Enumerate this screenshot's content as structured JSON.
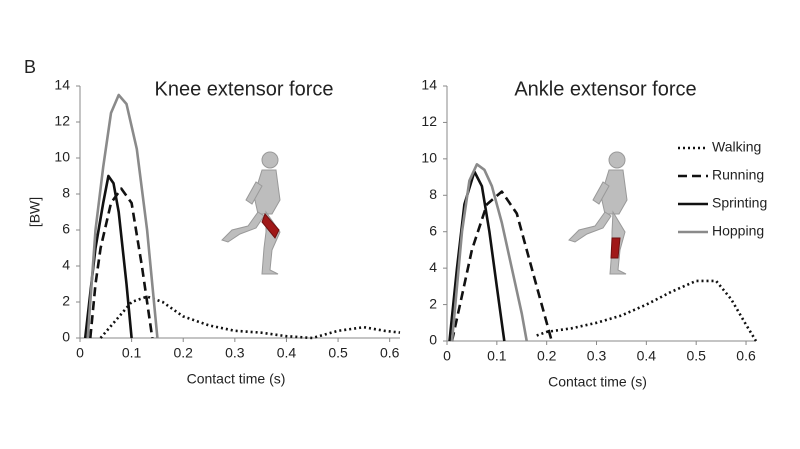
{
  "panel_label": "B",
  "chart_data": [
    {
      "type": "line",
      "title": "Knee extensor force",
      "xlabel": "Contact time (s)",
      "ylabel": "[BW]",
      "xlim": [
        0,
        0.62
      ],
      "xticks": [
        0,
        0.1,
        0.2,
        0.3,
        0.4,
        0.5,
        0.6
      ],
      "ylim": [
        0,
        14
      ],
      "yticks": [
        0,
        2,
        4,
        6,
        8,
        10,
        12,
        14
      ],
      "grid": false,
      "series": [
        {
          "name": "Walking",
          "color": "#111111",
          "dash": "dotted",
          "x": [
            0.04,
            0.07,
            0.1,
            0.13,
            0.16,
            0.2,
            0.25,
            0.3,
            0.35,
            0.4,
            0.45,
            0.5,
            0.55,
            0.59,
            0.62
          ],
          "values": [
            0,
            1.0,
            2.0,
            2.3,
            2.0,
            1.2,
            0.7,
            0.4,
            0.3,
            0.1,
            0,
            0.4,
            0.6,
            0.4,
            0.3
          ]
        },
        {
          "name": "Running",
          "color": "#111111",
          "dash": "dashed",
          "x": [
            0.02,
            0.03,
            0.04,
            0.06,
            0.08,
            0.1,
            0.12,
            0.14
          ],
          "values": [
            0,
            3,
            5,
            7.5,
            8.3,
            7.5,
            4,
            0
          ]
        },
        {
          "name": "Sprinting",
          "color": "#111111",
          "dash": "solid",
          "x": [
            0.01,
            0.02,
            0.03,
            0.045,
            0.055,
            0.065,
            0.075,
            0.09,
            0.1
          ],
          "values": [
            0,
            2.5,
            5,
            7.5,
            9,
            8.6,
            7,
            3,
            0
          ]
        },
        {
          "name": "Hopping",
          "color": "#8a8a8a",
          "dash": "solid",
          "x": [
            0.015,
            0.03,
            0.045,
            0.06,
            0.075,
            0.09,
            0.11,
            0.13,
            0.15
          ],
          "values": [
            0,
            6,
            9.5,
            12.5,
            13.5,
            13,
            10.5,
            6,
            0
          ]
        }
      ]
    },
    {
      "type": "line",
      "title": "Ankle extensor force",
      "xlabel": "Contact time (s)",
      "xlim": [
        0,
        0.62
      ],
      "xticks": [
        0,
        0.1,
        0.2,
        0.3,
        0.4,
        0.5,
        0.6
      ],
      "ylim": [
        0,
        14
      ],
      "yticks": [
        0,
        2,
        4,
        6,
        8,
        10,
        12,
        14
      ],
      "grid": false,
      "legend": "right",
      "series": [
        {
          "name": "Walking",
          "color": "#111111",
          "dash": "dotted",
          "x": [
            0.18,
            0.2,
            0.25,
            0.3,
            0.35,
            0.4,
            0.45,
            0.5,
            0.54,
            0.57,
            0.6,
            0.62
          ],
          "values": [
            0.3,
            0.5,
            0.7,
            1.0,
            1.4,
            2.0,
            2.7,
            3.3,
            3.3,
            2.3,
            0.9,
            0
          ]
        },
        {
          "name": "Running",
          "color": "#111111",
          "dash": "dashed",
          "x": [
            0.01,
            0.03,
            0.05,
            0.08,
            0.11,
            0.14,
            0.16,
            0.18,
            0.21
          ],
          "values": [
            0,
            2.5,
            5,
            7.5,
            8.2,
            7,
            5,
            3,
            0
          ]
        },
        {
          "name": "Sprinting",
          "color": "#111111",
          "dash": "solid",
          "x": [
            0.005,
            0.02,
            0.035,
            0.055,
            0.07,
            0.085,
            0.1,
            0.115
          ],
          "values": [
            0,
            4,
            7.5,
            9.3,
            8.5,
            6,
            3,
            0
          ]
        },
        {
          "name": "Hopping",
          "color": "#8a8a8a",
          "dash": "solid",
          "x": [
            0.01,
            0.03,
            0.045,
            0.06,
            0.075,
            0.09,
            0.11,
            0.13,
            0.15,
            0.16
          ],
          "values": [
            0,
            6,
            8.8,
            9.7,
            9.4,
            8.5,
            6.5,
            4,
            1.5,
            0
          ]
        }
      ]
    }
  ]
}
